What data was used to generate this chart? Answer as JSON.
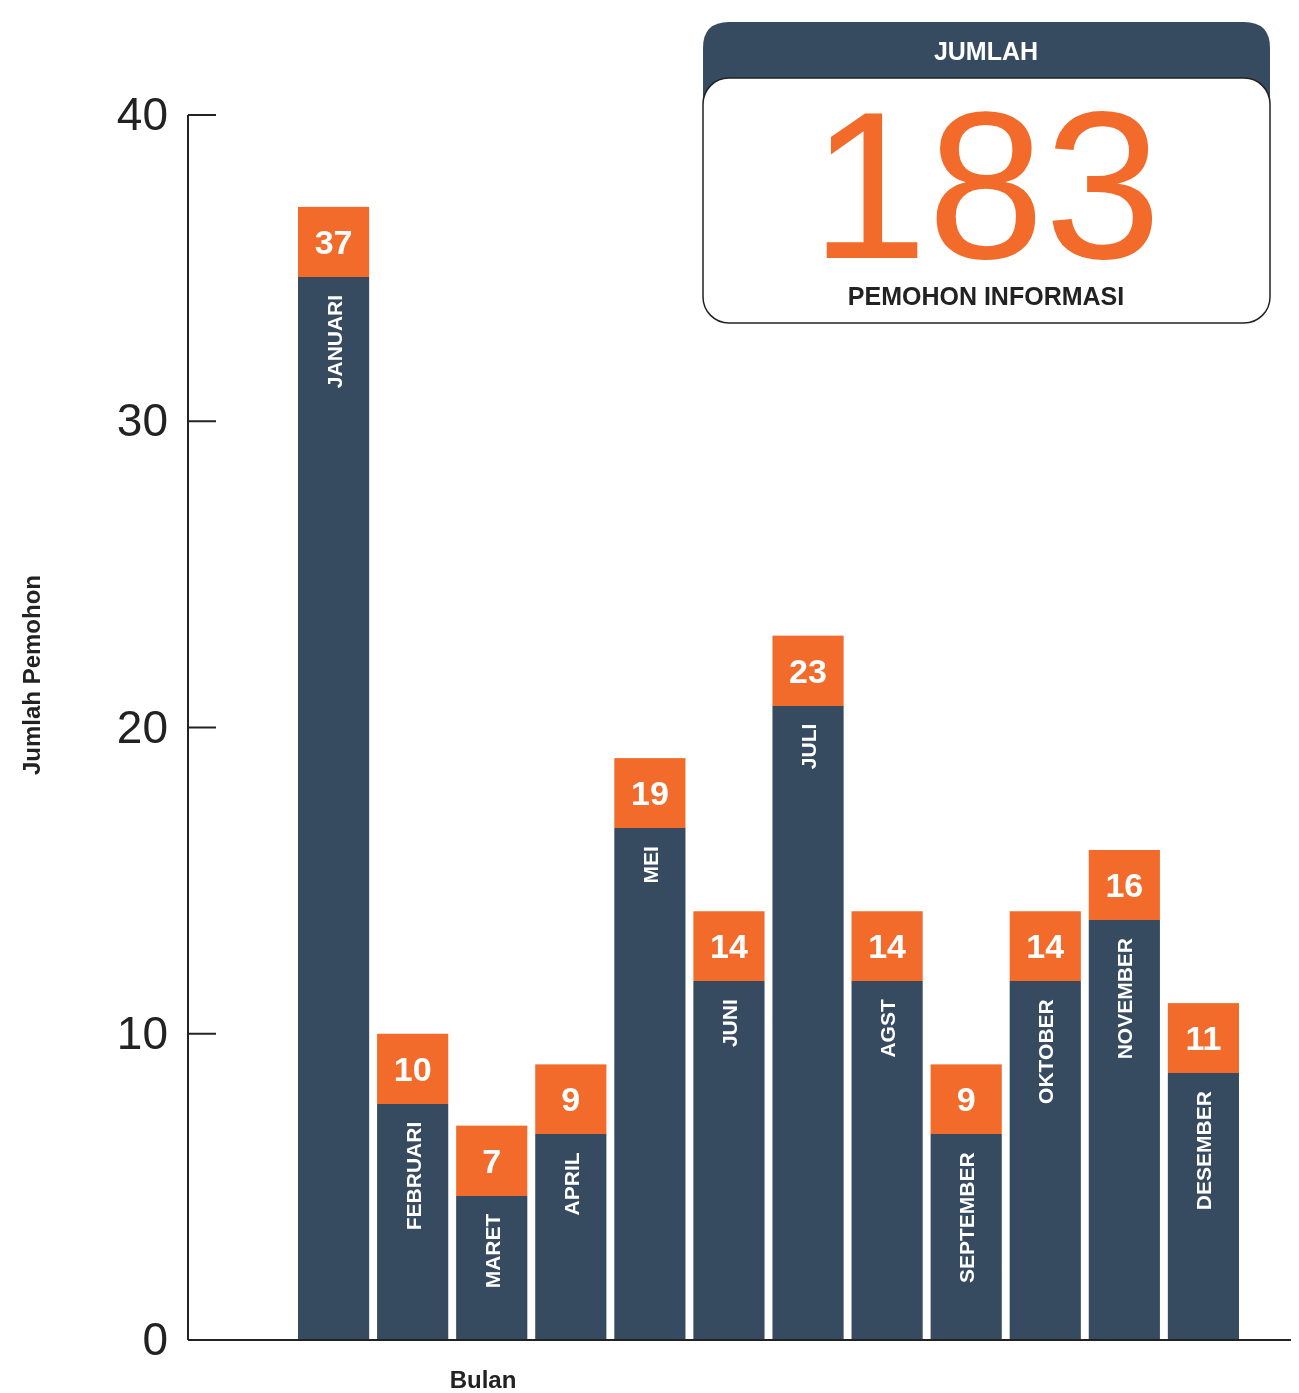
{
  "chart_data": {
    "type": "bar",
    "xlabel": "Bulan",
    "ylabel": "Jumlah Pemohon",
    "categories": [
      "JANUARI",
      "FEBRUARI",
      "MARET",
      "APRIL",
      "MEI",
      "JUNI",
      "JULI",
      "AGST",
      "SEPTEMBER",
      "OKTOBER",
      "NOVEMBER",
      "DESEMBER"
    ],
    "values": [
      37,
      10,
      7,
      9,
      19,
      14,
      23,
      14,
      9,
      14,
      16,
      11
    ],
    "color": "#364a60",
    "ylim": [
      0,
      40
    ],
    "yticks": [
      0,
      10,
      20,
      30,
      40
    ],
    "data_labels": true,
    "grid": false,
    "annotations": [
      "JUMLAH",
      "183",
      "PEMOHON INFORMASI"
    ]
  }
}
